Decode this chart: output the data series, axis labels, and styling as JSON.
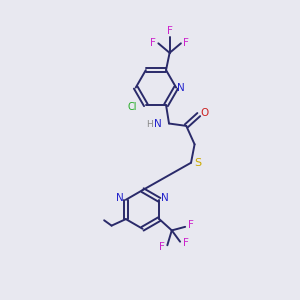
{
  "background_color": "#e8e8f0",
  "bond_color": "#2a2a6a",
  "atom_colors": {
    "N": "#2222cc",
    "O": "#cc2222",
    "S": "#ccaa00",
    "Cl": "#22aa22",
    "F": "#cc22cc",
    "C": "#2a2a6a",
    "H": "#888888"
  },
  "figsize": [
    3.0,
    3.0
  ],
  "dpi": 100
}
